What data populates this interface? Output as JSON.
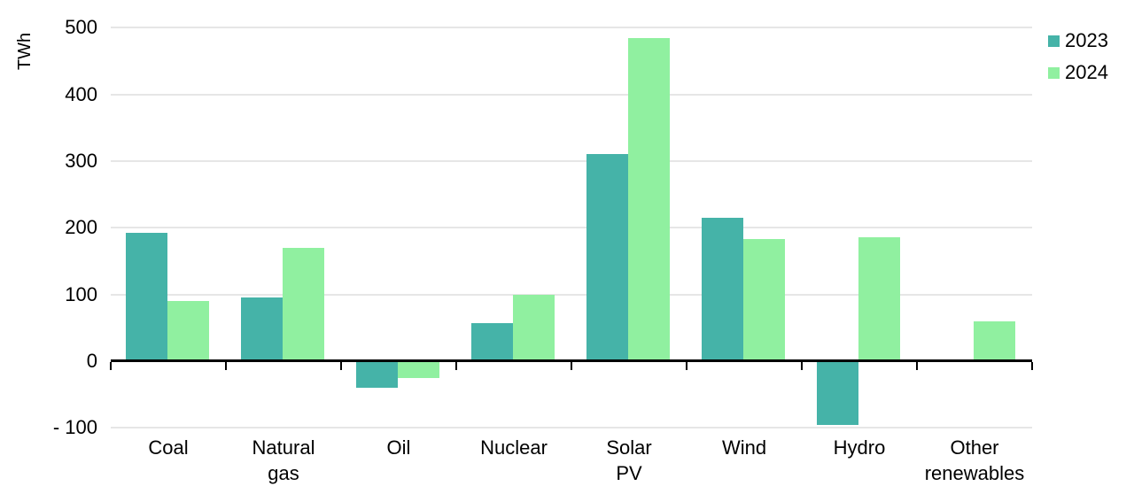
{
  "chart_data": {
    "type": "bar",
    "title": "",
    "ylabel": "TWh",
    "categories": [
      "Coal",
      "Natural\ngas",
      "Oil",
      "Nuclear",
      "Solar\nPV",
      "Wind",
      "Hydro",
      "Other\nrenewables"
    ],
    "series": [
      {
        "name": "2023",
        "color": "#45B3A8",
        "values": [
          193,
          95,
          -40,
          57,
          310,
          215,
          -95,
          2
        ]
      },
      {
        "name": "2024",
        "color": "#90F0A0",
        "values": [
          90,
          170,
          -25,
          100,
          485,
          183,
          186,
          60
        ]
      }
    ],
    "ylim": [
      -100,
      500
    ],
    "ytick_step": 100,
    "ytick_values": [
      500,
      400,
      300,
      200,
      100,
      0,
      -100
    ],
    "ytick_labels": [
      "500",
      "400",
      "300",
      "200",
      "100",
      "0",
      "- 100"
    ],
    "grid": true,
    "legend_position": "top-right",
    "colors": {
      "gridline": "#E6E6E6",
      "axis": "#000000",
      "text": "#000000",
      "background": "#FFFFFF"
    }
  }
}
